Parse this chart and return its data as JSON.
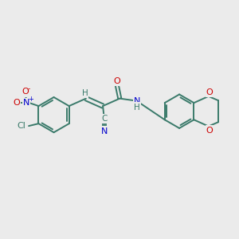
{
  "background_color": "#EBEBEB",
  "bond_color": "#3a7a6a",
  "atom_colors": {
    "N": "#0000cc",
    "O": "#cc0000",
    "Cl": "#3a7a6a",
    "C": "#3a7a6a",
    "H": "#3a7a6a"
  },
  "figsize": [
    3.0,
    3.0
  ],
  "dpi": 100
}
